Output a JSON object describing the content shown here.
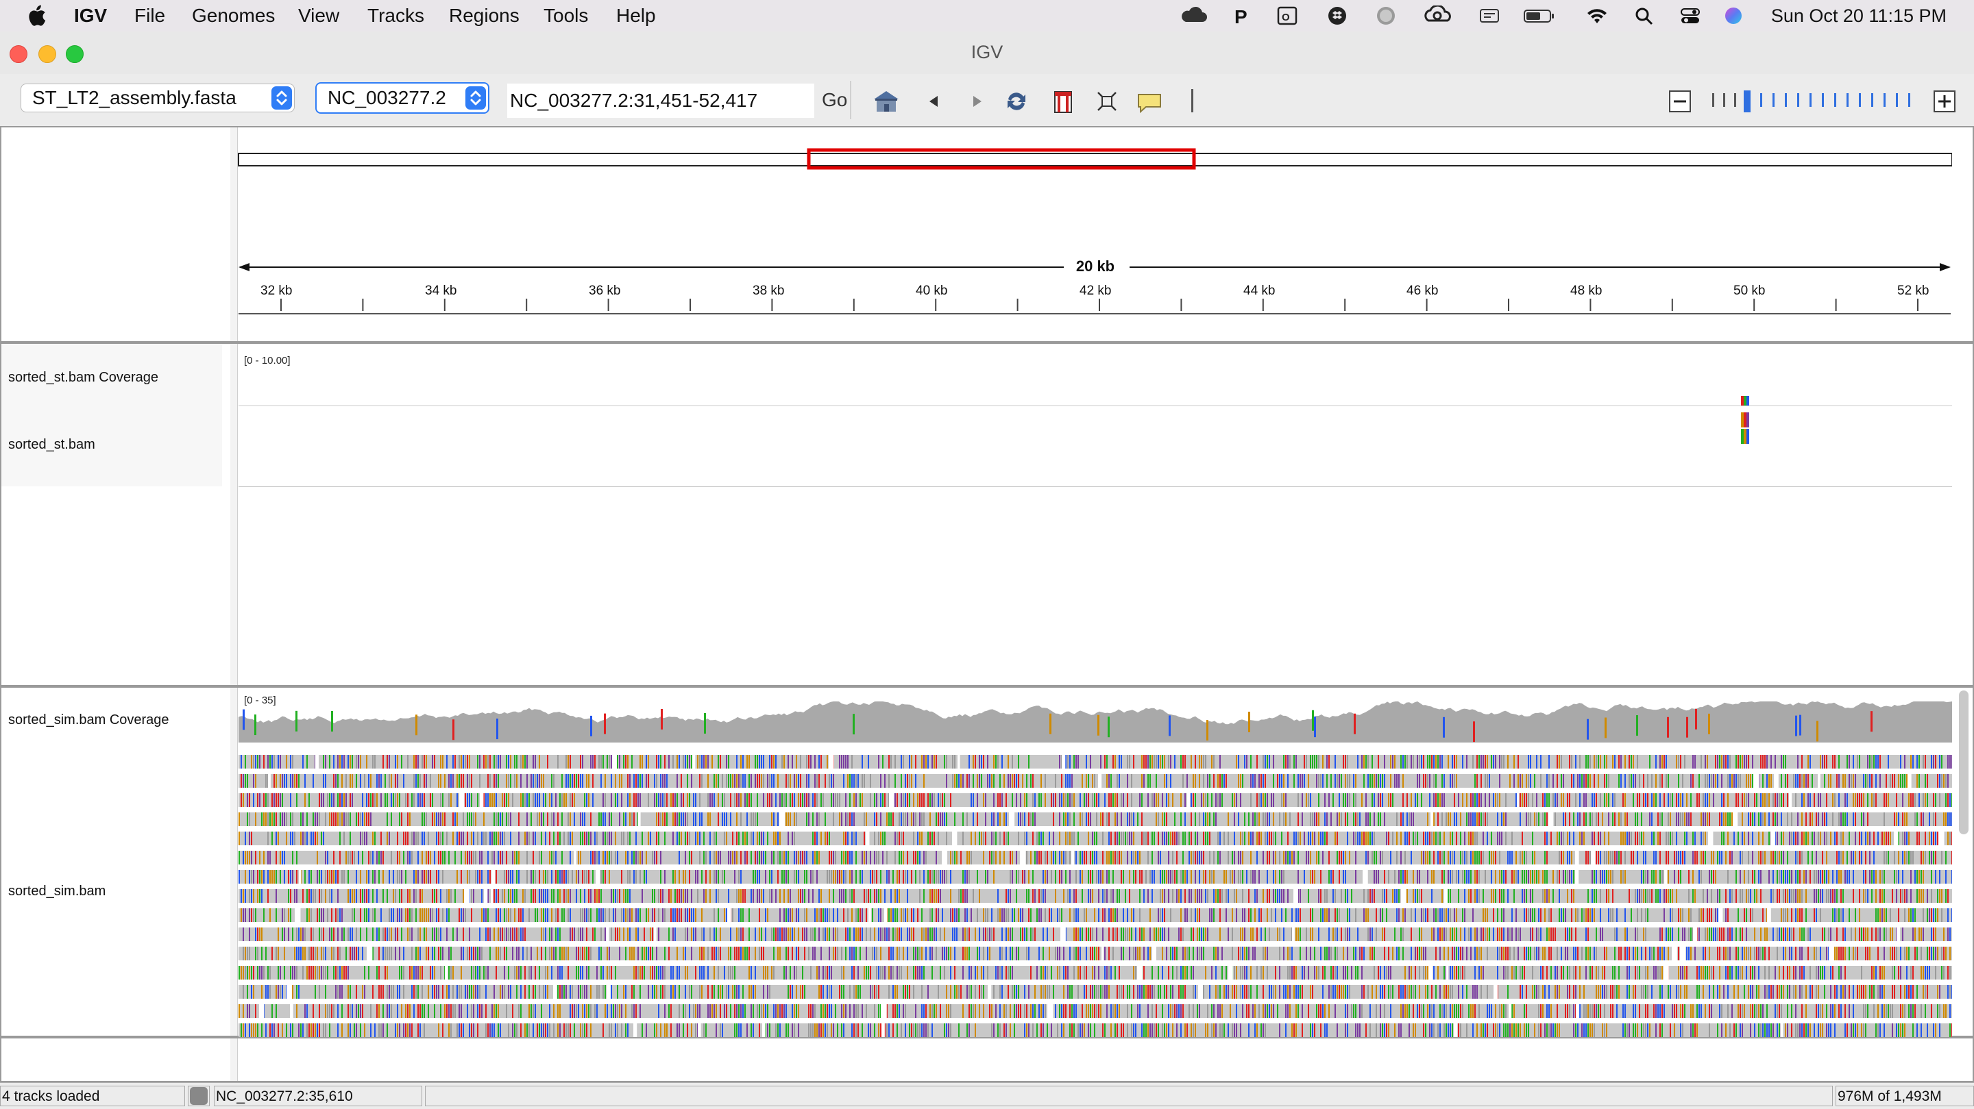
{
  "menubar": {
    "app_name": "IGV",
    "menus": [
      "File",
      "Genomes",
      "View",
      "Tracks",
      "Regions",
      "Tools",
      "Help"
    ],
    "clock": "Sun Oct 20  11:15 PM",
    "status_icons": [
      "cloud-icon",
      "p-icon",
      "outlook-icon",
      "dropbox-icon",
      "globe-icon",
      "creative-cloud-icon",
      "menu-extra-icon",
      "battery-icon",
      "wifi-icon",
      "spotlight-icon",
      "control-center-icon",
      "siri-icon"
    ]
  },
  "window": {
    "title": "IGV"
  },
  "toolbar": {
    "genome": "ST_LT2_assembly.fasta",
    "chromosome": "NC_003277.2",
    "locus": "NC_003277.2:31,451-52,417",
    "go_label": "Go",
    "buttons": [
      "home-icon",
      "back-icon",
      "forward-icon",
      "refresh-icon",
      "region-of-interest-icon",
      "fit-to-window-icon",
      "popup-info-icon"
    ]
  },
  "ruler": {
    "span_label": "20 kb",
    "ticks": [
      "32 kb",
      "34 kb",
      "36 kb",
      "38 kb",
      "40 kb",
      "42 kb",
      "44 kb",
      "46 kb",
      "48 kb",
      "50 kb",
      "52 kb"
    ]
  },
  "tracks": {
    "st_coverage": {
      "name": "sorted_st.bam Coverage",
      "range": "[0 - 10.00]"
    },
    "st_bam": {
      "name": "sorted_st.bam"
    },
    "sim_coverage": {
      "name": "sorted_sim.bam Coverage",
      "range": "[0 - 35]"
    },
    "sim_bam": {
      "name": "sorted_sim.bam"
    }
  },
  "status": {
    "tracks_loaded": "4 tracks loaded",
    "position": "NC_003277.2:35,610",
    "memory": "976M of 1,493M"
  },
  "colors": {
    "roi_red": "#e00000",
    "coverage_gray": "#a9a9a9",
    "read_gray": "#c8c8c8",
    "base_a": "#22b022",
    "base_c": "#2255ee",
    "base_g": "#d08a00",
    "base_t": "#e02020"
  }
}
